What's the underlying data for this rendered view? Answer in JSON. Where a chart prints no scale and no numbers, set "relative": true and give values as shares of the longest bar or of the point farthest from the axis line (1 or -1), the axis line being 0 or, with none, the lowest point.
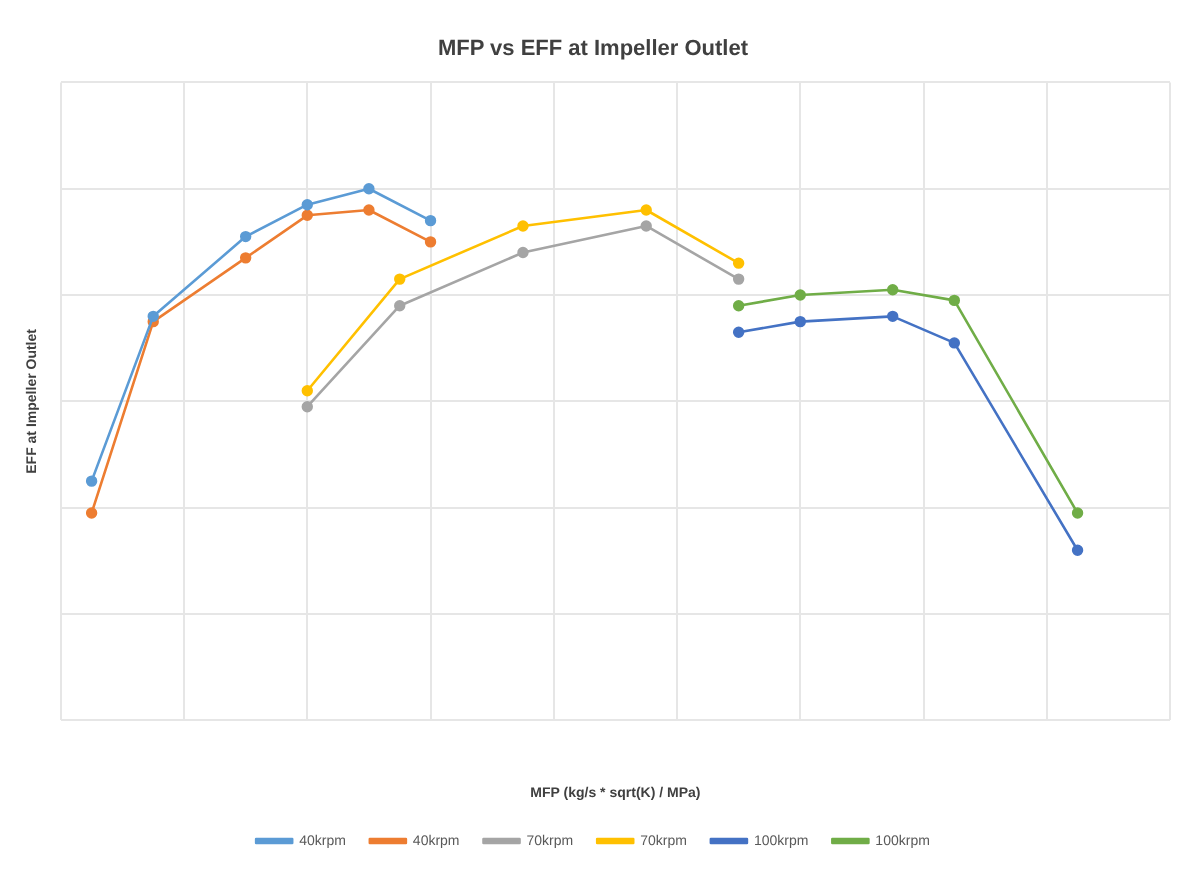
{
  "chart_data": {
    "type": "line",
    "title": "MFP vs EFF at Impeller Outlet",
    "xlabel": "MFP (kg/s * sqrt(K) / MPa)",
    "ylabel": "EFF at Impeller Outlet",
    "relative": true,
    "grid": true,
    "legend": "bottom",
    "marker": "circle",
    "line_style": "solid",
    "categories": [
      null,
      null,
      null,
      null,
      null,
      null,
      null,
      null,
      null,
      null,
      null,
      null,
      null,
      null,
      null,
      null,
      null,
      null,
      null,
      null,
      null,
      null,
      null,
      null,
      null,
      null,
      null,
      null,
      null,
      null,
      null,
      null,
      null,
      null,
      null,
      null,
      null
    ],
    "series": [
      {
        "name": "40krpm",
        "color": "#5b9bd5",
        "values": [
          null,
          0.45,
          null,
          0.76,
          null,
          null,
          0.91,
          null,
          0.97,
          null,
          1,
          null,
          0.94,
          null,
          null,
          null,
          null,
          null,
          null,
          null,
          null,
          null,
          null,
          null,
          null,
          null,
          null,
          null,
          null,
          null,
          null,
          null,
          null,
          null,
          null,
          null,
          null
        ]
      },
      {
        "name": "40krpm",
        "color": "#ed7d31",
        "values": [
          null,
          0.39,
          null,
          0.75,
          null,
          null,
          0.87,
          null,
          0.95,
          null,
          0.96,
          null,
          0.9,
          null,
          null,
          null,
          null,
          null,
          null,
          null,
          null,
          null,
          null,
          null,
          null,
          null,
          null,
          null,
          null,
          null,
          null,
          null,
          null,
          null,
          null,
          null,
          null
        ]
      },
      {
        "name": "70krpm",
        "color": "#a5a5a5",
        "values": [
          null,
          null,
          null,
          null,
          null,
          null,
          null,
          null,
          0.59,
          null,
          null,
          0.78,
          null,
          null,
          null,
          0.88,
          null,
          null,
          null,
          0.93,
          null,
          null,
          0.83,
          null,
          null,
          null,
          null,
          null,
          null,
          null,
          null,
          null,
          null,
          null,
          null,
          null,
          null
        ]
      },
      {
        "name": "70krpm",
        "color": "#ffc000",
        "values": [
          null,
          null,
          null,
          null,
          null,
          null,
          null,
          null,
          0.62,
          null,
          null,
          0.83,
          null,
          null,
          null,
          0.93,
          null,
          null,
          null,
          0.96,
          null,
          null,
          0.86,
          null,
          null,
          null,
          null,
          null,
          null,
          null,
          null,
          null,
          null,
          null,
          null,
          null,
          null
        ]
      },
      {
        "name": "100krpm",
        "color": "#4472c4",
        "values": [
          null,
          null,
          null,
          null,
          null,
          null,
          null,
          null,
          null,
          null,
          null,
          null,
          null,
          null,
          null,
          null,
          null,
          null,
          null,
          null,
          null,
          null,
          0.73,
          null,
          0.75,
          null,
          null,
          0.76,
          null,
          0.71,
          null,
          null,
          null,
          0.32,
          null,
          null,
          null
        ]
      },
      {
        "name": "100krpm",
        "color": "#70ad47",
        "values": [
          null,
          null,
          null,
          null,
          null,
          null,
          null,
          null,
          null,
          null,
          null,
          null,
          null,
          null,
          null,
          null,
          null,
          null,
          null,
          null,
          null,
          null,
          0.78,
          null,
          0.8,
          null,
          null,
          0.81,
          null,
          0.79,
          null,
          null,
          null,
          0.39,
          null,
          null,
          null
        ]
      }
    ]
  }
}
